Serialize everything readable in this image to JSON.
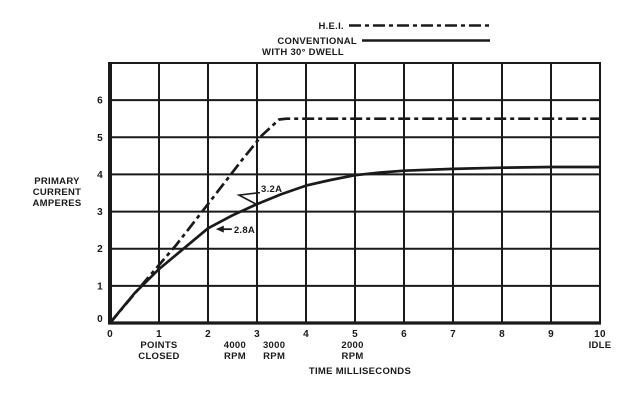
{
  "colors": {
    "ink": "#1a1a1a",
    "bg": "#ffffff"
  },
  "legend": {
    "items": [
      {
        "label": "H.E.I.",
        "style": "dashdot"
      },
      {
        "label": "CONVENTIONAL",
        "sublabel": "WITH 30° DWELL",
        "style": "solid"
      }
    ]
  },
  "chart_data": {
    "type": "line",
    "title": "",
    "xlabel": "TIME MILLISECONDS",
    "ylabel": "PRIMARY CURRENT AMPERES",
    "ylabel_lines": [
      "PRIMARY",
      "CURRENT",
      "AMPERES"
    ],
    "xlim": [
      0,
      10
    ],
    "ylim": [
      0,
      7
    ],
    "x_ticks": [
      0,
      1,
      2,
      3,
      4,
      5,
      6,
      7,
      8,
      9,
      10
    ],
    "y_ticks": [
      0,
      1,
      2,
      3,
      4,
      5,
      6
    ],
    "grid": true,
    "legend_position": "top",
    "x_sublabels": [
      {
        "lines": [
          "POINTS",
          "CLOSED"
        ],
        "x": 1
      },
      {
        "lines": [
          "4000",
          "RPM"
        ],
        "x": 2.55
      },
      {
        "lines": [
          "3000",
          "RPM"
        ],
        "x": 3.35
      },
      {
        "lines": [
          "2000",
          "RPM"
        ],
        "x": 4.95
      },
      {
        "lines": [
          "IDLE"
        ],
        "x": 10
      }
    ],
    "series": [
      {
        "name": "H.E.I.",
        "style": "dashdot",
        "points": [
          [
            0,
            0
          ],
          [
            0.7,
            1.1
          ],
          [
            1.35,
            2.1
          ],
          [
            2,
            3.2
          ],
          [
            2.7,
            4.4
          ],
          [
            3.1,
            5.05
          ],
          [
            3.45,
            5.48
          ],
          [
            3.6,
            5.5
          ],
          [
            5,
            5.5
          ],
          [
            6,
            5.5
          ],
          [
            7,
            5.5
          ],
          [
            8,
            5.5
          ],
          [
            9,
            5.5
          ],
          [
            10,
            5.5
          ]
        ]
      },
      {
        "name": "CONVENTIONAL WITH 30° DWELL",
        "style": "solid",
        "points": [
          [
            0,
            0
          ],
          [
            0.5,
            0.8
          ],
          [
            1,
            1.45
          ],
          [
            1.5,
            2.0
          ],
          [
            2,
            2.55
          ],
          [
            2.5,
            2.9
          ],
          [
            3,
            3.2
          ],
          [
            3.5,
            3.47
          ],
          [
            4,
            3.7
          ],
          [
            4.5,
            3.85
          ],
          [
            5,
            3.98
          ],
          [
            5.5,
            4.05
          ],
          [
            6,
            4.1
          ],
          [
            7,
            4.15
          ],
          [
            8,
            4.18
          ],
          [
            9,
            4.2
          ],
          [
            10,
            4.2
          ]
        ]
      }
    ],
    "annotations": [
      {
        "text": "3.2A",
        "point": [
          3,
          3.2
        ],
        "style": "flag"
      },
      {
        "text": "2.8A",
        "point": [
          2.18,
          2.58
        ],
        "style": "arrow-left"
      }
    ]
  }
}
